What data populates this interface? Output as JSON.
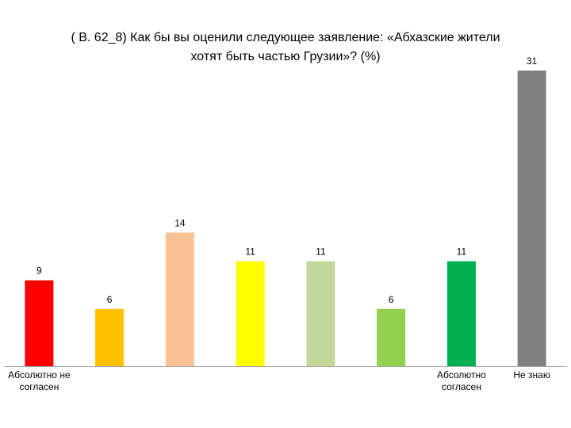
{
  "chart_data": {
    "type": "bar",
    "title_line1": "( В. 62_8)  Как бы вы оценили следующее заявление: «Абхазские жители",
    "title_line2": "хотят  быть частью Грузии»? (%)",
    "categories": [
      "Абсолютно не согласен",
      "",
      "",
      "",
      "",
      "",
      "Абсолютно согласен",
      "Не знаю"
    ],
    "values": [
      9,
      6,
      14,
      11,
      11,
      6,
      11,
      31
    ],
    "colors": [
      "#ff0000",
      "#ffc000",
      "#f9c294",
      "#ffff00",
      "#c4d79b",
      "#92d050",
      "#00b050",
      "#808080"
    ],
    "ylim": [
      0,
      31
    ],
    "grid": false,
    "legend": "none"
  }
}
